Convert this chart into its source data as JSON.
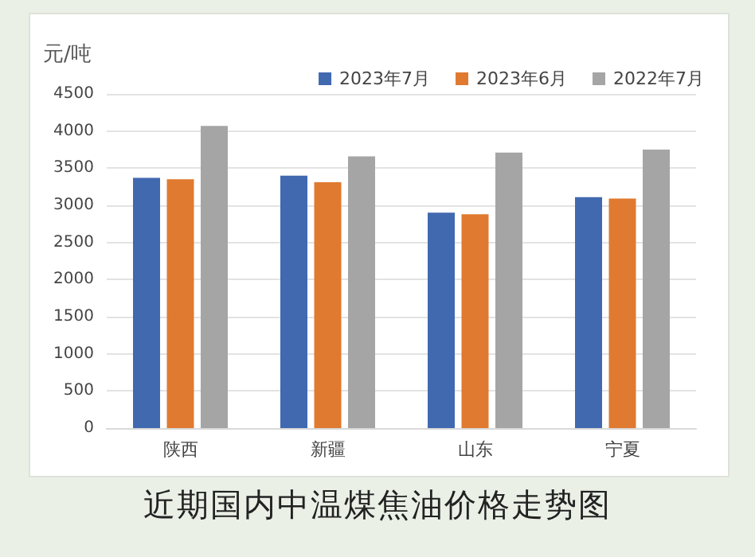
{
  "chart_data": {
    "type": "bar",
    "title": "近期国内中温煤焦油价格走势图",
    "ylabel": "元/吨",
    "categories": [
      "陕西",
      "新疆",
      "山东",
      "宁夏"
    ],
    "series": [
      {
        "name": "2023年7月",
        "color": "#4169b0",
        "values": [
          3370,
          3400,
          2900,
          3110
        ]
      },
      {
        "name": "2023年6月",
        "color": "#e07a30",
        "values": [
          3350,
          3310,
          2880,
          3090
        ]
      },
      {
        "name": "2022年7月",
        "color": "#a5a5a5",
        "values": [
          4070,
          3660,
          3710,
          3750
        ]
      }
    ],
    "ylim": [
      0,
      4500
    ],
    "yticks": [
      0,
      500,
      1000,
      1500,
      2000,
      2500,
      3000,
      3500,
      4000,
      4500
    ],
    "grid": "y",
    "legend": "top right"
  }
}
